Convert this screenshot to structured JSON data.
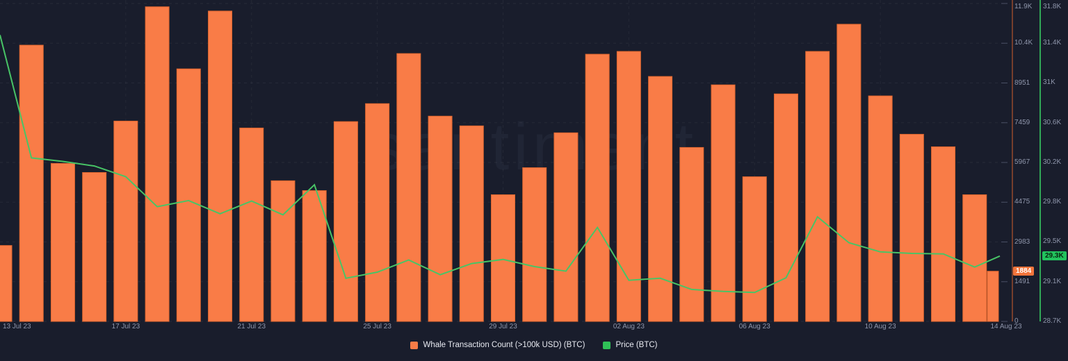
{
  "watermark": "santiment",
  "legend": {
    "items": [
      {
        "label": "Whale Transaction Count (>100k USD) (BTC)",
        "color": "#f97c47"
      },
      {
        "label": "Price (BTC)",
        "color": "#2fc157"
      }
    ]
  },
  "chart_data": {
    "type": "bar",
    "subtype": "combo-bar-line-dual-right-axis",
    "title": "",
    "grid": {
      "horizontal": true,
      "vertical": true,
      "style": "dashed"
    },
    "legend_position": "bottom-center",
    "categories": [
      "13 Jul 23",
      "14 Jul 23",
      "15 Jul 23",
      "16 Jul 23",
      "17 Jul 23",
      "18 Jul 23",
      "19 Jul 23",
      "20 Jul 23",
      "21 Jul 23",
      "22 Jul 23",
      "23 Jul 23",
      "24 Jul 23",
      "25 Jul 23",
      "26 Jul 23",
      "27 Jul 23",
      "28 Jul 23",
      "29 Jul 23",
      "30 Jul 23",
      "31 Jul 23",
      "01 Aug 23",
      "02 Aug 23",
      "03 Aug 23",
      "04 Aug 23",
      "05 Aug 23",
      "06 Aug 23",
      "07 Aug 23",
      "08 Aug 23",
      "09 Aug 23",
      "10 Aug 23",
      "11 Aug 23",
      "12 Aug 23",
      "13 Aug 23",
      "14 Aug 23"
    ],
    "series": [
      {
        "name": "Whale Transaction Count (>100k USD) (BTC)",
        "type": "bar",
        "axis": "count",
        "color": "#f97c47",
        "values": [
          2850,
          10370,
          5930,
          5590,
          7520,
          11810,
          9480,
          11650,
          7260,
          5280,
          4910,
          7500,
          8175,
          10055,
          7705,
          7340,
          4755,
          5770,
          7080,
          10030,
          10135,
          9195,
          6530,
          8880,
          5430,
          8540,
          10135,
          11155,
          8465,
          7025,
          6555,
          4755,
          1884
        ]
      },
      {
        "name": "Price (BTC)",
        "type": "line",
        "axis": "price",
        "color": "#48c466",
        "values": [
          31490,
          30280,
          30245,
          30200,
          30095,
          29800,
          29860,
          29730,
          29855,
          29720,
          30015,
          29095,
          29155,
          29275,
          29130,
          29240,
          29280,
          29210,
          29165,
          29595,
          29075,
          29095,
          28985,
          28965,
          28955,
          29100,
          29700,
          29445,
          29355,
          29340,
          29335,
          29205,
          29314
        ]
      }
    ],
    "axes": {
      "x": {
        "tick_indices": [
          0,
          4,
          8,
          12,
          16,
          20,
          24,
          28,
          32
        ],
        "tick_labels": [
          "13 Jul 23",
          "17 Jul 23",
          "21 Jul 23",
          "25 Jul 23",
          "29 Jul 23",
          "02 Aug 23",
          "06 Aug 23",
          "10 Aug 23",
          "14 Aug 23"
        ]
      },
      "count": {
        "side": "right",
        "range": [
          0,
          11935
        ],
        "axis_line_color": "#96492c",
        "ticks": [
          {
            "label": "0",
            "value": 0
          },
          {
            "label": "1491",
            "value": 1491
          },
          {
            "label": "2983",
            "value": 2983
          },
          {
            "label": "4475",
            "value": 4475
          },
          {
            "label": "5967",
            "value": 5967
          },
          {
            "label": "7459",
            "value": 7459
          },
          {
            "label": "8951",
            "value": 8951
          },
          {
            "label": "10.4K",
            "value": 10443
          },
          {
            "label": "11.9K",
            "value": 11935
          }
        ],
        "current_badge": {
          "label": "1884",
          "value": 1884,
          "bg": "#f4743b",
          "fg": "#ffffff"
        }
      },
      "price": {
        "side": "far-right",
        "range": [
          28670,
          31800
        ],
        "axis_line_color": "#31a857",
        "ticks": [
          {
            "label": "28.7K",
            "value": 28670
          },
          {
            "label": "29.1K",
            "value": 29061
          },
          {
            "label": "29.5K",
            "value": 29453
          },
          {
            "label": "29.8K",
            "value": 29844
          },
          {
            "label": "30.2K",
            "value": 30235
          },
          {
            "label": "30.6K",
            "value": 30626
          },
          {
            "label": "31K",
            "value": 31018
          },
          {
            "label": "31.4K",
            "value": 31409
          },
          {
            "label": "31.8K",
            "value": 31800
          }
        ],
        "current_badge": {
          "label": "29.3K",
          "value": 29314,
          "bg": "#22c35d",
          "fg": "#07230f"
        }
      }
    }
  }
}
